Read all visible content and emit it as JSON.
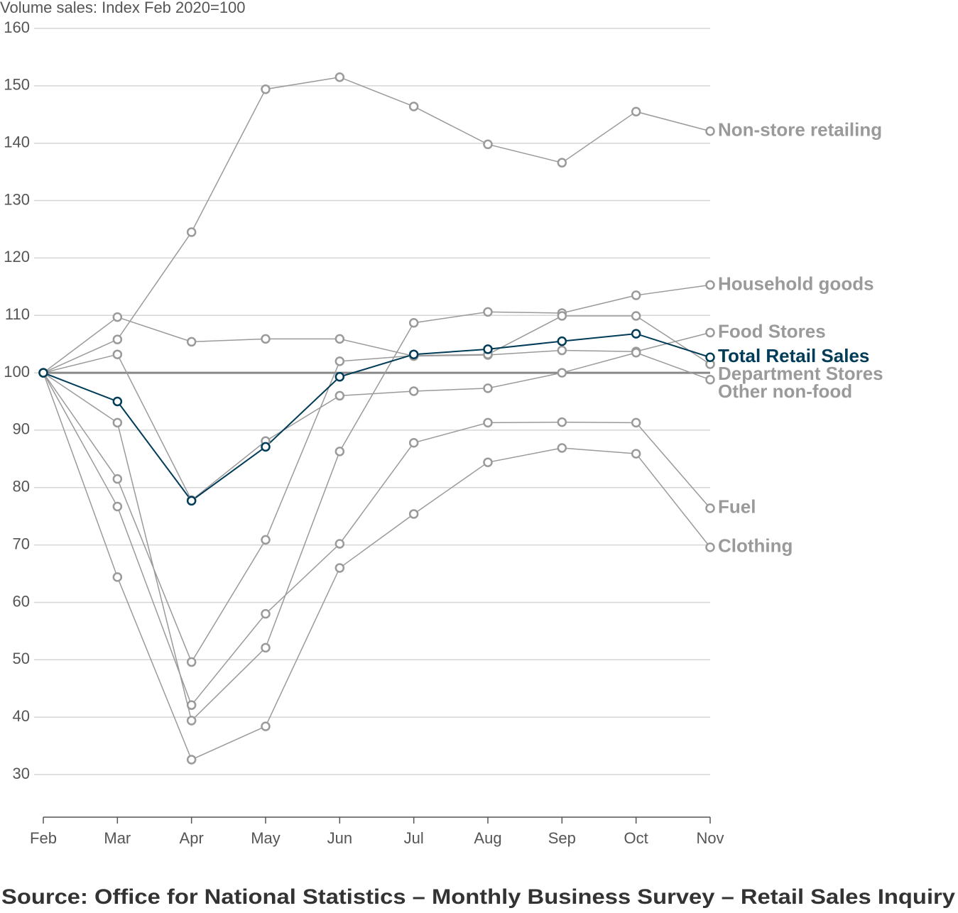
{
  "chart_data": {
    "type": "line",
    "y_axis_label": "Volume sales: Index Feb 2020=100",
    "source": "Source: Office for National Statistics – Monthly Business Survey – Retail Sales Inquiry",
    "categories": [
      "Feb",
      "Mar",
      "Apr",
      "May",
      "Jun",
      "Jul",
      "Aug",
      "Sep",
      "Oct",
      "Nov"
    ],
    "ylim": [
      30,
      160
    ],
    "yticks": [
      30,
      40,
      50,
      60,
      70,
      80,
      90,
      100,
      110,
      120,
      130,
      140,
      150,
      160
    ],
    "grid": true,
    "reference_line": 100,
    "series": [
      {
        "name": "Non-store retailing",
        "color": "#9a9a9a",
        "values": [
          100,
          105.8,
          124.5,
          149.4,
          151.5,
          146.4,
          139.8,
          136.6,
          145.5,
          142.1
        ]
      },
      {
        "name": "Household goods",
        "color": "#9a9a9a",
        "values": [
          100,
          91.3,
          39.4,
          52.1,
          86.3,
          108.7,
          110.6,
          110.4,
          113.5,
          115.3
        ]
      },
      {
        "name": "Food Stores",
        "color": "#9a9a9a",
        "values": [
          100,
          109.7,
          105.4,
          105.9,
          105.9,
          102.9,
          103.1,
          103.9,
          103.7,
          107.0
        ]
      },
      {
        "name": "Total Retail Sales",
        "color": "#003c57",
        "values": [
          100,
          95.0,
          77.7,
          87.1,
          99.3,
          103.2,
          104.1,
          105.5,
          106.8,
          102.7
        ]
      },
      {
        "name": "Department Stores",
        "color": "#9a9a9a",
        "values": [
          100,
          81.5,
          49.6,
          70.9,
          102.0,
          103.0,
          103.2,
          109.9,
          109.9,
          101.5
        ]
      },
      {
        "name": "Other non-food",
        "color": "#9a9a9a",
        "values": [
          100,
          103.2,
          77.8,
          88.1,
          96.0,
          96.8,
          97.3,
          100.0,
          103.5,
          98.8
        ]
      },
      {
        "name": "Fuel",
        "color": "#9a9a9a",
        "values": [
          100,
          76.7,
          42.1,
          58.0,
          70.2,
          87.8,
          91.3,
          91.4,
          91.3,
          76.4
        ]
      },
      {
        "name": "Clothing",
        "color": "#9a9a9a",
        "values": [
          100,
          64.4,
          32.6,
          38.4,
          66.0,
          75.4,
          84.4,
          86.9,
          85.9,
          69.6
        ]
      }
    ]
  }
}
